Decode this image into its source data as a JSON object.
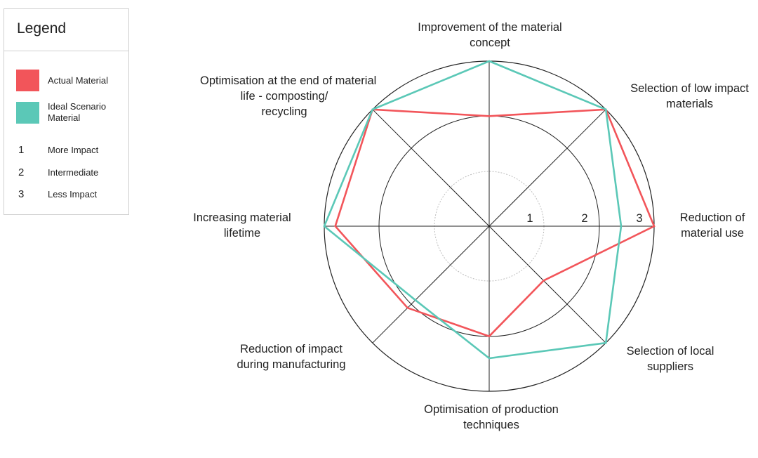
{
  "legend": {
    "title": "Legend",
    "series": [
      {
        "label": "Actual Material",
        "color": "#f2555a"
      },
      {
        "label": "Ideal Scenario Material",
        "color": "#5bc8b7"
      }
    ],
    "scale": [
      {
        "num": "1",
        "label": "More Impact"
      },
      {
        "num": "2",
        "label": "Intermediate"
      },
      {
        "num": "3",
        "label": "Less Impact"
      }
    ]
  },
  "chart_data": {
    "type": "radar",
    "axes": [
      "Improvement of the material concept",
      "Selection of low impact materials",
      "Reduction of material use",
      "Selection of local suppliers",
      "Optimisation of production techniques",
      "Reduction of impact during manufacturing",
      "Increasing material lifetime",
      "Optimisation at the end of material life - composting/ recycling"
    ],
    "rings": [
      "1",
      "2",
      "3"
    ],
    "rmax": 3,
    "series": [
      {
        "name": "Actual Material",
        "color": "#f2555a",
        "values": [
          2.0,
          3.0,
          3.0,
          1.4,
          2.0,
          2.1,
          2.8,
          3.0
        ]
      },
      {
        "name": "Ideal Scenario Material",
        "color": "#5bc8b7",
        "values": [
          3.0,
          3.0,
          2.4,
          3.0,
          2.4,
          1.9,
          3.0,
          3.0
        ]
      }
    ]
  }
}
